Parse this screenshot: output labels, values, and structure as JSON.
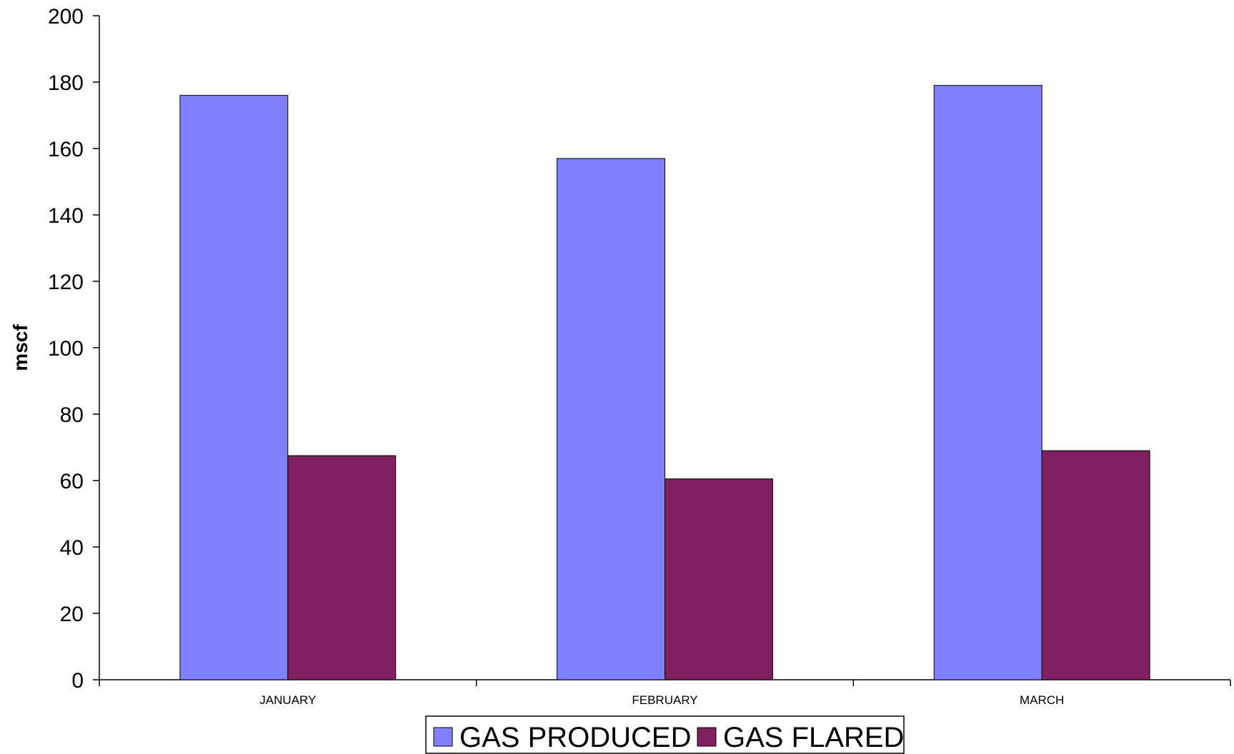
{
  "chart_data": {
    "type": "bar",
    "categories": [
      "JANUARY",
      "FEBRUARY",
      "MARCH"
    ],
    "series": [
      {
        "name": "GAS PRODUCED",
        "values": [
          176,
          157,
          179
        ],
        "color": "#8080ff"
      },
      {
        "name": "GAS FLARED",
        "values": [
          67.5,
          60.5,
          69
        ],
        "color": "#802060"
      }
    ],
    "title": "",
    "xlabel": "",
    "ylabel": "mscf",
    "ylim": [
      0,
      200
    ],
    "yticks": [
      0,
      20,
      40,
      60,
      80,
      100,
      120,
      140,
      160,
      180,
      200
    ],
    "grid": false,
    "legend": "bottom-center"
  }
}
